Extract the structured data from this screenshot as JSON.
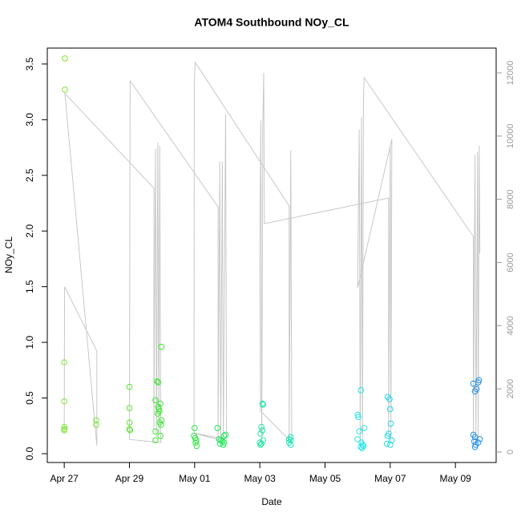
{
  "chart_data": {
    "type": "scatter",
    "title": "ATOM4 Southbound NOy_CL",
    "x_label": "Date",
    "y_label": "NOy_CL",
    "xlim": [
      -0.52,
      13.25
    ],
    "ylim": [
      -0.079,
      3.643
    ],
    "y2lim": [
      -330,
      12785
    ],
    "xticks": [
      {
        "value": 0,
        "label": "Apr 27"
      },
      {
        "value": 2,
        "label": "Apr 29"
      },
      {
        "value": 4,
        "label": "May 01"
      },
      {
        "value": 6,
        "label": "May 03"
      },
      {
        "value": 8,
        "label": "May 05"
      },
      {
        "value": 10,
        "label": "May 07"
      },
      {
        "value": 12,
        "label": "May 09"
      }
    ],
    "yticks": [
      {
        "value": 0,
        "label": "0.0"
      },
      0.5,
      {
        "value": 1,
        "label": "1.0"
      },
      1.5,
      {
        "value": 2,
        "label": "2.0"
      },
      2.5,
      {
        "value": 3,
        "label": "3.0"
      },
      3.5
    ],
    "y2ticks": [
      0,
      2000,
      4000,
      6000,
      8000,
      10000,
      12000
    ],
    "series": [
      {
        "type": "line",
        "axis": "y2",
        "color": "#c8c8c8",
        "x": [
          0,
          0.01,
          1.0,
          1.0,
          0.02,
          2.75,
          2.75,
          2.8,
          2.83,
          2.87,
          2.9,
          2.93,
          2.96,
          2.0,
          2.02,
          4.72,
          4.72,
          4.77,
          4.8,
          4.85,
          4.88,
          4.95,
          4.98,
          4.0,
          4.7,
          3.98,
          3.99,
          4.02,
          6.9,
          6.9,
          6.95,
          6.98,
          6.02,
          6.0,
          6.03,
          6.06,
          6.09,
          6.12,
          6.14,
          9.95,
          9.95,
          10.0,
          10.02,
          10.05,
          9.0,
          9.05,
          9.08,
          9.12,
          9.15,
          9.18,
          9.2,
          12.55,
          12.55,
          12.6,
          12.63,
          12.68,
          12.7,
          12.73,
          12.75
        ],
        "values": [
          600,
          5230,
          3200,
          200,
          11350,
          8350,
          700,
          9600,
          500,
          9800,
          600,
          9700,
          300,
          400,
          11750,
          7760,
          300,
          9200,
          400,
          9200,
          300,
          10700,
          400,
          600,
          400,
          600,
          11700,
          12330,
          7790,
          300,
          9550,
          300,
          1300,
          6100,
          10500,
          300,
          10300,
          12000,
          7230,
          8040,
          500,
          9700,
          300,
          9900,
          5200,
          10200,
          300,
          10600,
          300,
          11200,
          11850,
          6820,
          300,
          9400,
          300,
          9500,
          300,
          9700,
          6300
        ]
      },
      {
        "color": "#80e632",
        "x": [
          0.02,
          0.02,
          0.0,
          0.0,
          0.0,
          0.01,
          0.0
        ],
        "values": [
          3.55,
          3.27,
          0.82,
          0.47,
          0.24,
          0.22,
          0.21
        ]
      },
      {
        "color": "#7ee632",
        "x": [
          0.98,
          0.98
        ],
        "values": [
          0.3,
          0.26
        ]
      },
      {
        "color": "#5fe632",
        "x": [
          2.0,
          2.0,
          2.0,
          2.0,
          2.02
        ],
        "values": [
          0.6,
          0.41,
          0.28,
          0.22,
          0.21
        ]
      },
      {
        "color": "#3ee632",
        "x": [
          2.98,
          2.85,
          2.88,
          2.8,
          2.95,
          2.88,
          2.9,
          2.92,
          2.87,
          2.98,
          2.93,
          2.97,
          2.8,
          2.95,
          2.8
        ],
        "values": [
          0.96,
          0.65,
          0.64,
          0.48,
          0.45,
          0.42,
          0.4,
          0.38,
          0.36,
          0.3,
          0.28,
          0.26,
          0.2,
          0.16,
          0.12
        ]
      },
      {
        "color": "#2ae63c",
        "x": [
          4.0,
          3.98,
          4.02,
          4.05,
          4.03,
          4.06
        ],
        "values": [
          0.23,
          0.16,
          0.14,
          0.12,
          0.1,
          0.07
        ]
      },
      {
        "color": "#22e65c",
        "x": [
          4.7,
          4.95,
          4.9,
          4.75,
          4.8,
          4.85,
          4.9,
          4.78,
          4.88
        ],
        "values": [
          0.23,
          0.17,
          0.16,
          0.13,
          0.12,
          0.11,
          0.1,
          0.09,
          0.08
        ]
      },
      {
        "color": "#22e6a0",
        "x": [
          6.08,
          6.1,
          6.05,
          6.08,
          6.02,
          6.1,
          6.0,
          6.05,
          6.02
        ],
        "values": [
          0.45,
          0.44,
          0.24,
          0.21,
          0.18,
          0.12,
          0.1,
          0.09,
          0.08
        ]
      },
      {
        "color": "#22e6b8",
        "x": [
          6.95,
          6.9,
          6.95,
          6.9,
          6.95
        ],
        "values": [
          0.15,
          0.13,
          0.12,
          0.1,
          0.08
        ]
      },
      {
        "color": "#22e6e6",
        "x": [
          9.1,
          9.0,
          9.02,
          9.2,
          9.05,
          9.0,
          9.12,
          9.15,
          9.18,
          9.1,
          9.14
        ],
        "values": [
          0.57,
          0.35,
          0.33,
          0.23,
          0.2,
          0.13,
          0.1,
          0.08,
          0.07,
          0.06,
          0.05
        ]
      },
      {
        "color": "#22d8e6",
        "x": [
          9.92,
          9.98,
          10.0,
          10.02,
          9.95,
          9.92,
          10.05,
          9.9,
          10.0
        ],
        "values": [
          0.51,
          0.49,
          0.4,
          0.27,
          0.18,
          0.16,
          0.12,
          0.09,
          0.08
        ]
      },
      {
        "color": "#2290e6",
        "x": [
          12.72,
          12.7,
          12.55,
          12.65,
          12.6,
          12.55,
          12.6,
          12.75,
          12.58,
          12.7,
          12.62,
          12.6
        ],
        "values": [
          0.66,
          0.64,
          0.63,
          0.58,
          0.56,
          0.17,
          0.15,
          0.13,
          0.11,
          0.1,
          0.08,
          0.06
        ]
      }
    ]
  }
}
